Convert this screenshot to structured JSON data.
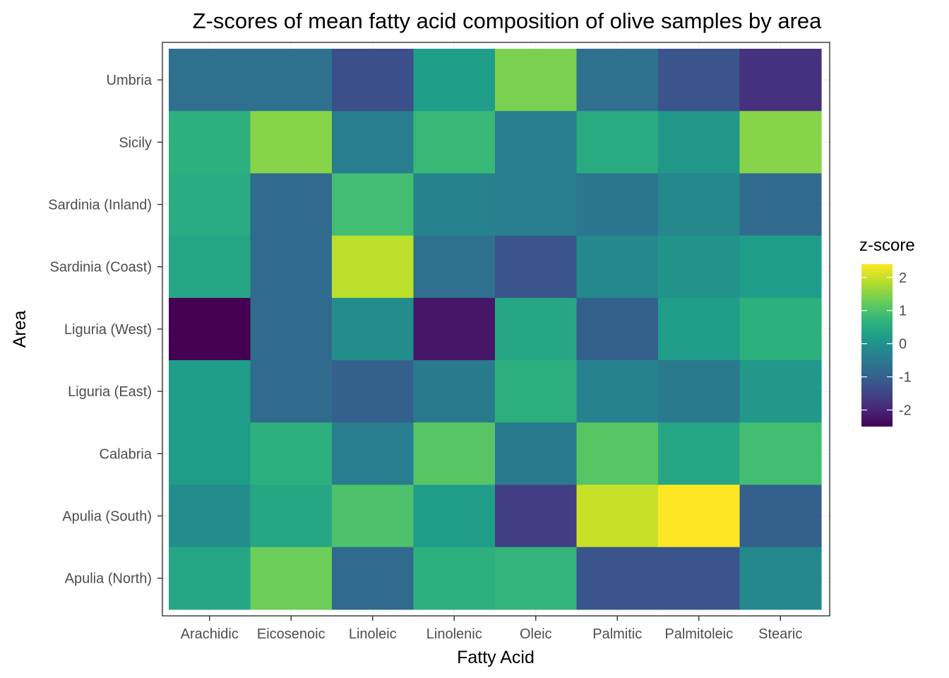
{
  "chart_data": {
    "type": "heatmap",
    "title": "Z-scores of mean fatty acid composition of olive samples by area",
    "xlabel": "Fatty Acid",
    "ylabel": "Area",
    "x_categories": [
      "Arachidic",
      "Eicosenoic",
      "Linoleic",
      "Linolenic",
      "Oleic",
      "Palmitic",
      "Palmitoleic",
      "Stearic"
    ],
    "y_categories": [
      "Umbria",
      "Sicily",
      "Sardinia (Inland)",
      "Sardinia (Coast)",
      "Liguria (West)",
      "Liguria (East)",
      "Calabria",
      "Apulia (South)",
      "Apulia (North)"
    ],
    "values": [
      [
        -0.7,
        -0.7,
        -1.3,
        0.2,
        1.4,
        -0.7,
        -1.2,
        -1.8
      ],
      [
        0.6,
        1.5,
        -0.4,
        0.8,
        -0.4,
        0.5,
        0.1,
        1.5
      ],
      [
        0.5,
        -0.8,
        0.9,
        -0.3,
        -0.4,
        -0.6,
        -0.2,
        -0.8
      ],
      [
        0.4,
        -0.8,
        1.9,
        -0.7,
        -1.2,
        -0.2,
        0.0,
        0.2
      ],
      [
        -2.5,
        -0.8,
        -0.1,
        -2.2,
        0.4,
        -1.0,
        0.2,
        0.6
      ],
      [
        0.2,
        -0.8,
        -1.0,
        -0.5,
        0.6,
        -0.3,
        -0.5,
        0.1
      ],
      [
        0.2,
        0.6,
        -0.4,
        1.1,
        -0.5,
        1.1,
        0.4,
        0.9
      ],
      [
        -0.1,
        0.4,
        1.0,
        0.2,
        -1.6,
        2.0,
        2.4,
        -1.0
      ],
      [
        0.4,
        1.3,
        -0.8,
        0.6,
        0.7,
        -1.2,
        -1.2,
        -0.2
      ]
    ],
    "legend": {
      "title": "z-score",
      "ticks": [
        "2",
        "1",
        "0",
        "-1",
        "-2"
      ],
      "tick_values": [
        2,
        1,
        0,
        -1,
        -2
      ],
      "min": -2.5,
      "max": 2.4,
      "placement": "right"
    },
    "colormap": [
      "#440154",
      "#482878",
      "#3e4989",
      "#31688e",
      "#26828e",
      "#1f9e89",
      "#35b779",
      "#6ece58",
      "#b5de2b",
      "#fde725"
    ],
    "grid": true
  }
}
